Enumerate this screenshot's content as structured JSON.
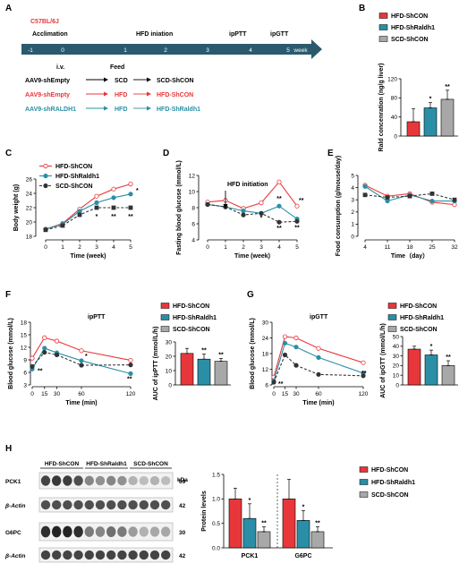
{
  "colors": {
    "red": "#e8373a",
    "teal": "#2a8fa6",
    "gray": "#7a7a7a",
    "dark": "#333333",
    "lightgray": "#a8a8a8",
    "arrow": "#2b5a6e"
  },
  "panelA": {
    "letter": "A",
    "strain": "C57BL/6J",
    "timeline": [
      {
        "t": "-1"
      },
      {
        "t": "0"
      },
      {
        "t": "1"
      },
      {
        "t": "2"
      },
      {
        "t": "3"
      },
      {
        "t": "4"
      },
      {
        "t": "5"
      }
    ],
    "week": "week",
    "top_labels": {
      "acclimation": "Acclimation",
      "hfd": "HFD iniation",
      "ipptt": "ipPTT",
      "ipgtt": "ipGTT"
    },
    "sub_labels": {
      "iv": "i.v.",
      "feed": "Feed"
    },
    "rows": [
      {
        "virus": "AAV9-shEmpty",
        "diet": "SCD",
        "group": "SCD-ShCON",
        "color": "#000000"
      },
      {
        "virus": "AAV9-shEmpty",
        "diet": "HFD",
        "group": "HFD-ShCON",
        "color": "#e8373a"
      },
      {
        "virus": "AAV9-shRALDH1",
        "diet": "HFD",
        "group": "HFD-ShRaldh1",
        "color": "#2a8fa6"
      }
    ]
  },
  "legend": {
    "hfd_shcon": "HFD-ShCON",
    "hfd_shraldh1": "HFD-ShRaldh1",
    "scd_shcon": "SCD-ShCON"
  },
  "chart_data": [
    {
      "panel": "B",
      "type": "bar",
      "ylabel": "Rald concenration (ng/g liver)",
      "ylim": [
        0,
        120
      ],
      "yticks": [
        0,
        40,
        80,
        120
      ],
      "series": [
        {
          "name": "HFD-ShCON",
          "value": 30,
          "err": 27
        },
        {
          "name": "HFD-ShRaldh1",
          "value": 59,
          "err": 11,
          "sig": "*"
        },
        {
          "name": "SCD-ShCON",
          "value": 77,
          "err": 19,
          "sig": "**"
        }
      ]
    },
    {
      "panel": "C",
      "type": "line",
      "xlabel": "Time (week)",
      "ylabel": "Body weight (g)",
      "x": [
        0,
        1,
        2,
        3,
        4,
        5
      ],
      "ylim": [
        18,
        26
      ],
      "yticks": [
        18,
        20,
        22,
        24,
        26
      ],
      "series": [
        {
          "name": "HFD-ShCON",
          "values": [
            19.0,
            19.8,
            21.8,
            23.6,
            24.6,
            25.3
          ]
        },
        {
          "name": "HFD-ShRaldh1",
          "values": [
            19.0,
            19.7,
            21.5,
            22.7,
            23.4,
            23.9
          ]
        },
        {
          "name": "SCD-ShCON",
          "values": [
            18.9,
            19.5,
            21.0,
            22.0,
            22.0,
            22.0
          ]
        }
      ],
      "annotations": [
        {
          "x": 3,
          "text": "*"
        },
        {
          "x": 4,
          "text": "**"
        },
        {
          "x": 5,
          "text": "*"
        },
        {
          "x": 5,
          "text": "**"
        }
      ]
    },
    {
      "panel": "D",
      "type": "line",
      "xlabel": "Time (week)",
      "ylabel": "Fasting blood glucose (mmol/L)",
      "x": [
        0,
        1,
        2,
        3,
        4,
        5
      ],
      "ylim": [
        4,
        12
      ],
      "yticks": [
        4,
        6,
        8,
        10,
        12
      ],
      "annotation": "HFD initiation",
      "series": [
        {
          "name": "HFD-ShCON",
          "values": [
            8.7,
            8.9,
            7.9,
            8.6,
            11.2,
            8.2
          ]
        },
        {
          "name": "HFD-ShRaldh1",
          "values": [
            8.4,
            8.1,
            7.6,
            7.3,
            8.2,
            6.6
          ]
        },
        {
          "name": "SCD-ShCON",
          "values": [
            8.4,
            8.1,
            7.1,
            7.3,
            6.2,
            6.3
          ]
        }
      ],
      "sig": [
        "*",
        "**",
        "**",
        "**",
        "**"
      ]
    },
    {
      "panel": "E",
      "type": "line",
      "xlabel": "Time（day）",
      "ylabel": "Food consumption (g/mouse/day)",
      "categories": [
        "4",
        "11",
        "18",
        "25",
        "32"
      ],
      "ylim": [
        0,
        5
      ],
      "yticks": [
        0,
        1,
        2,
        3,
        4,
        5
      ],
      "series": [
        {
          "name": "HFD-ShCON",
          "values": [
            4.2,
            3.3,
            3.5,
            2.8,
            2.6
          ]
        },
        {
          "name": "HFD-ShRaldh1",
          "values": [
            4.1,
            2.9,
            3.4,
            2.9,
            2.9
          ]
        },
        {
          "name": "SCD-ShCON",
          "values": [
            3.4,
            3.2,
            3.3,
            3.5,
            3.0
          ]
        }
      ]
    },
    {
      "panel": "F",
      "type": "line",
      "title": "ipPTT",
      "xlabel": "Time (min)",
      "ylabel": "Blood glucose (mmol/L)",
      "x": [
        0,
        15,
        30,
        60,
        120
      ],
      "ylim": [
        3,
        18
      ],
      "yticks": [
        3,
        6,
        9,
        12,
        15,
        18
      ],
      "series": [
        {
          "name": "HFD-ShCON",
          "values": [
            9.4,
            14.3,
            13.5,
            11.2,
            8.9
          ]
        },
        {
          "name": "HFD-ShRaldh1",
          "values": [
            6.8,
            11.8,
            10.7,
            8.8,
            5.7
          ]
        },
        {
          "name": "SCD-ShCON",
          "values": [
            7.4,
            10.8,
            10.2,
            7.7,
            7.8
          ]
        }
      ]
    },
    {
      "panel": "F",
      "type": "bar",
      "ylabel": "AUC of ipPTT (mmol/L/h)",
      "ylim": [
        0,
        30
      ],
      "yticks": [
        0,
        10,
        20,
        30
      ],
      "series": [
        {
          "name": "HFD-ShCON",
          "value": 22,
          "err": 3.5
        },
        {
          "name": "HFD-ShRaldh1",
          "value": 18,
          "err": 3.5,
          "sig": "**"
        },
        {
          "name": "SCD-ShCON",
          "value": 16.5,
          "err": 2,
          "sig": "**"
        }
      ]
    },
    {
      "panel": "G",
      "type": "line",
      "title": "ipGTT",
      "xlabel": "Time (min)",
      "ylabel": "Blood glucose (mmol/L)",
      "x": [
        0,
        15,
        30,
        60,
        120
      ],
      "ylim": [
        6,
        30
      ],
      "yticks": [
        6,
        12,
        18,
        24,
        30
      ],
      "series": [
        {
          "name": "HFD-ShCON",
          "values": [
            9,
            24.5,
            24,
            20,
            14.5
          ]
        },
        {
          "name": "HFD-ShRaldh1",
          "values": [
            7.5,
            22,
            20.5,
            16.5,
            10.5
          ]
        },
        {
          "name": "SCD-ShCON",
          "values": [
            7,
            17.5,
            13.5,
            10,
            9.5
          ]
        }
      ]
    },
    {
      "panel": "G",
      "type": "bar",
      "ylabel": "AUC of ipGTT (mmol/L/h)",
      "ylim": [
        0,
        50
      ],
      "yticks": [
        0,
        10,
        20,
        30,
        40,
        50
      ],
      "series": [
        {
          "name": "HFD-ShCON",
          "value": 37,
          "err": 3
        },
        {
          "name": "HFD-ShRaldh1",
          "value": 31,
          "err": 5,
          "sig": "*"
        },
        {
          "name": "SCD-ShCON",
          "value": 20,
          "err": 5,
          "sig": "**"
        }
      ]
    },
    {
      "panel": "H",
      "type": "bar",
      "ylabel": "Protein levels",
      "categories": [
        "PCK1",
        "G6PC"
      ],
      "ylim": [
        0,
        1.5
      ],
      "yticks": [
        0.0,
        0.5,
        1.0,
        1.5
      ],
      "series": [
        {
          "name": "HFD-ShCON",
          "values": [
            1.0,
            1.0
          ],
          "err": [
            0.22,
            0.4
          ]
        },
        {
          "name": "HFD-ShRaldh1",
          "values": [
            0.6,
            0.56
          ],
          "err": [
            0.3,
            0.2
          ],
          "sig": [
            "*",
            "*"
          ]
        },
        {
          "name": "SCD-ShCON",
          "values": [
            0.33,
            0.33
          ],
          "err": [
            0.1,
            0.1
          ],
          "sig": [
            "**",
            "**"
          ]
        }
      ]
    }
  ],
  "blot": {
    "groups": [
      "HFD-ShCON",
      "HFD-ShRaldh1",
      "SCD-ShCON"
    ],
    "kda": "kDa",
    "rows": [
      {
        "label": "PCK1",
        "kda": "69"
      },
      {
        "label": "β-Actin",
        "kda": "42"
      },
      {
        "label": "G6PC",
        "kda": "30"
      },
      {
        "label": "β-Actin",
        "kda": "42"
      }
    ]
  },
  "letters": {
    "B": "B",
    "C": "C",
    "D": "D",
    "E": "E",
    "F": "F",
    "G": "G",
    "H": "H"
  }
}
